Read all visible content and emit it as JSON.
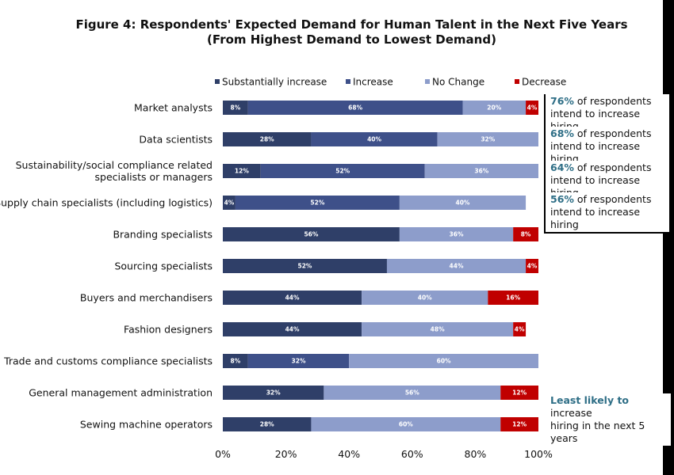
{
  "title_line1": "Figure 4: Respondents' Expected Demand for Human Talent in the Next Five Years",
  "title_line2": "(From Highest Demand to Lowest Demand)",
  "colors": {
    "Substantially increase": "#2f3f68",
    "Increase": "#3e5089",
    "No Change": "#8d9dcb",
    "Decrease": "#c00000"
  },
  "chart_data": {
    "type": "bar",
    "orientation": "horizontal",
    "stacked": "percent",
    "categories": [
      "Market analysts",
      "Data scientists",
      "Sustainability/social compliance related\nspecialists or managers",
      "Supply chain specialists (including logistics)",
      "Branding specialists",
      "Sourcing specialists",
      "Buyers and merchandisers",
      "Fashion designers",
      "Trade and customs compliance specialists",
      "General management administration",
      "Sewing machine operators"
    ],
    "series": [
      {
        "name": "Substantially increase",
        "values": [
          8,
          28,
          12,
          4,
          56,
          52,
          44,
          44,
          8,
          32,
          28
        ]
      },
      {
        "name": "Increase",
        "values": [
          68,
          40,
          52,
          52,
          0,
          0,
          0,
          0,
          32,
          0,
          0
        ]
      },
      {
        "name": "No Change",
        "values": [
          20,
          32,
          36,
          40,
          36,
          44,
          40,
          48,
          60,
          56,
          60
        ]
      },
      {
        "name": "Decrease",
        "values": [
          4,
          0,
          0,
          0,
          8,
          4,
          16,
          4,
          0,
          12,
          12
        ]
      }
    ],
    "x_ticks": [
      "0%",
      "20%",
      "40%",
      "60%",
      "80%",
      "100%"
    ],
    "xlim": [
      0,
      100
    ],
    "legend_position": "top",
    "grid": false
  },
  "callouts": [
    {
      "pct": "76%",
      "line1_rest": " of respondents",
      "line2": "intend to increase hiring"
    },
    {
      "pct": "68%",
      "line1_rest": " of respondents",
      "line2": "intend to increase hiring"
    },
    {
      "pct": "64%",
      "line1_rest": " of respondents",
      "line2": "intend to increase hiring"
    },
    {
      "pct": "56%",
      "line1_rest": " of respondents",
      "line2": "intend to increase hiring"
    }
  ],
  "least_likely": {
    "emph": "Least likely to",
    "rest1": " increase",
    "line2": "hiring in the next 5 years"
  }
}
